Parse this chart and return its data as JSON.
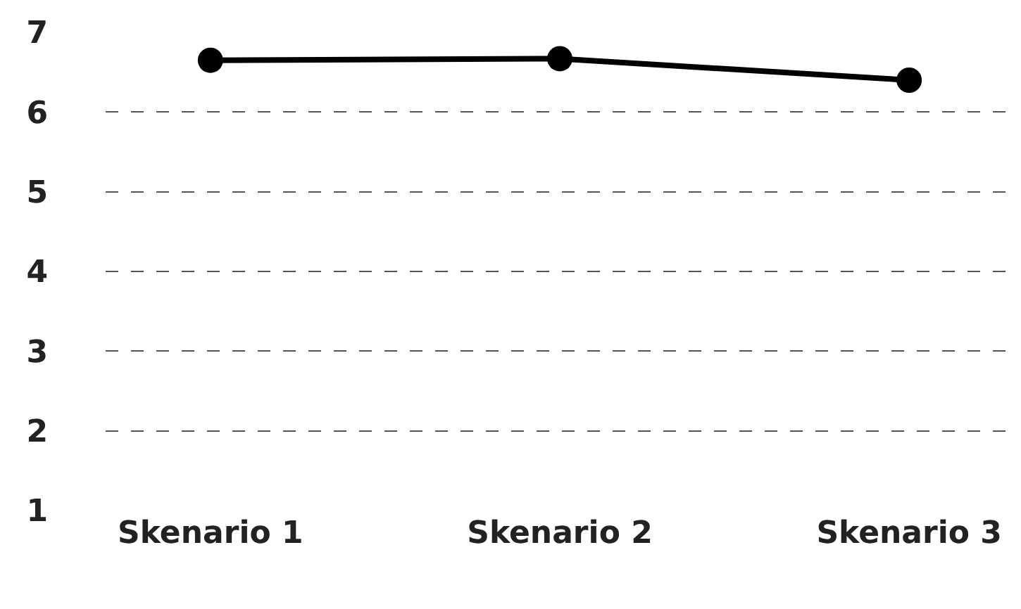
{
  "chart_data": {
    "type": "line",
    "categories": [
      "Skenario 1",
      "Skenario 2",
      "Skenario 3"
    ],
    "series": [
      {
        "color": "#000000",
        "values": [
          6.65,
          6.67,
          6.4
        ]
      }
    ],
    "ylim": [
      1,
      7
    ],
    "yticks": [
      1,
      2,
      3,
      4,
      5,
      6,
      7
    ],
    "grid": "y",
    "marker": "circle",
    "line_style": "solid"
  }
}
